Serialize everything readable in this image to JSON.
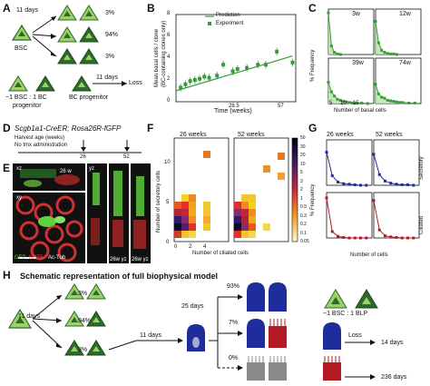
{
  "panel_letters": [
    "A",
    "B",
    "C",
    "D",
    "E",
    "F",
    "G",
    "H"
  ],
  "panelA": {
    "time_label": "11 days",
    "bsc_label": "BSC",
    "pcts": [
      "3%",
      "94%",
      "3%"
    ],
    "ratio_label": "~1 BSC : 1 BC",
    "progenitor_label": "progenitor",
    "bc_progenitor_label": "BC progenitor",
    "time2_label": "11 days",
    "loss_label": "Loss"
  },
  "panelB": {
    "legend_prediction": "Prediction",
    "legend_experiment": "Experiment",
    "ylabel_line1": "Mean basal cells / clone",
    "ylabel_line2": "(BC-containing clones only)",
    "xlabel": "Time (weeks)",
    "yticks": [
      "0",
      "2",
      "4",
      "6",
      "8"
    ],
    "xticks": [
      "28.5",
      "57"
    ]
  },
  "panelC": {
    "ylabel": "% Frequency",
    "xlabel": "Number of basal cells",
    "titles": [
      "3w",
      "12w",
      "39w",
      "74w"
    ],
    "yticks": [
      "0",
      "20",
      "40",
      "60",
      "80"
    ],
    "xticks": [
      "5",
      "10",
      "15"
    ]
  },
  "panelD": {
    "genotype": "Scgb1a1-CreER; Rosa26R-fGFP",
    "harvest_label": "Harvest age (weeks)",
    "tmx_label": "No tmx administration",
    "ages": [
      "26",
      "52"
    ]
  },
  "panelE": {
    "label_26w": "26 w",
    "label_xz": "xz",
    "label_xy": "xy",
    "label_yz": "yz",
    "label_26w_yz_1": "26w yz",
    "label_26w_yz_2": "26w yz",
    "stain_gfp": "GFP",
    "stain_krt5": "KRT5",
    "stain_actub": "Ac-Tub"
  },
  "panelF": {
    "titles": [
      "26 weeks",
      "52 weeks"
    ],
    "ylabel": "Number of secretory cells",
    "xlabel": "Number of ciliated cells",
    "colorbar_ticks": [
      "50",
      "30",
      "20",
      "10",
      "5",
      "3",
      "2",
      "1",
      "0.5",
      "0.3",
      "0.2",
      "0.1",
      "0.05"
    ],
    "yticks": [
      "0",
      "5",
      "10"
    ],
    "xticks": [
      "0",
      "2",
      "4"
    ]
  },
  "panelG": {
    "titles": [
      "26 weeks",
      "52 weeks"
    ],
    "ylabel": "% Frequency",
    "xlabel": "Number of cells",
    "row_labels": [
      "Secretory",
      "Ciliated"
    ],
    "yticks": [
      "0",
      "20",
      "40",
      "60",
      "80"
    ],
    "xticks": [
      "2",
      "4",
      "6",
      "8"
    ]
  },
  "panelH": {
    "title": "Schematic representation of full biophysical model",
    "time1": "11 days",
    "pcts_left": [
      "3%",
      "94%",
      "3%"
    ],
    "time2": "11 days",
    "time3": "25 days",
    "pcts_right": [
      "93%",
      "7%",
      "0%"
    ],
    "ratio_label": "~1 BSC : 1 BLP",
    "loss_label": "Loss",
    "days_14": "14 days",
    "days_236": "236 days"
  },
  "colors": {
    "green_dark": "#2d6b2a",
    "green_light": "#9bd06a",
    "series": "#3a9a3a",
    "blue": "#1f2c9c",
    "red": "#b41a24",
    "grey": "#8a8a8a"
  },
  "chart_data": [
    {
      "type": "scatter",
      "ylabel": "Mean basal cells / clone (BC-containing clones only)",
      "xlabel": "Time (weeks)",
      "ylim": [
        0,
        8
      ],
      "series": [
        {
          "name": "Experiment",
          "x": [
            3,
            6,
            9,
            12,
            15,
            18,
            21,
            26,
            30,
            36,
            39,
            45,
            52,
            57,
            64,
            74
          ],
          "y": [
            1.3,
            1.6,
            1.9,
            2.0,
            2.1,
            2.3,
            2.2,
            2.4,
            3.4,
            2.8,
            3.0,
            3.1,
            3.4,
            3.4,
            4.6,
            3.6
          ]
        },
        {
          "name": "Prediction",
          "x": [
            0,
            74
          ],
          "y": [
            1.0,
            4.2
          ]
        }
      ]
    },
    {
      "type": "line",
      "xlabel": "Number of basal cells",
      "ylabel": "% Frequency",
      "panels": [
        {
          "title": "3w",
          "x": [
            1,
            2,
            3,
            4,
            5
          ],
          "y": [
            78,
            16,
            4,
            1,
            0
          ]
        },
        {
          "title": "12w",
          "x": [
            1,
            2,
            3,
            4,
            5,
            6,
            7,
            8
          ],
          "y": [
            62,
            22,
            8,
            4,
            2,
            1,
            1,
            0
          ]
        },
        {
          "title": "39w",
          "x": [
            1,
            2,
            3,
            4,
            5,
            6,
            7,
            8,
            9,
            10,
            12,
            14
          ],
          "y": [
            40,
            22,
            14,
            8,
            6,
            4,
            3,
            2,
            1,
            1,
            1,
            0
          ]
        },
        {
          "title": "74w",
          "x": [
            1,
            2,
            3,
            4,
            5,
            6,
            7,
            8,
            9,
            10,
            12,
            14
          ],
          "y": [
            36,
            18,
            12,
            10,
            6,
            5,
            4,
            3,
            2,
            2,
            1,
            1
          ]
        }
      ]
    },
    {
      "type": "line",
      "xlabel": "Number of cells",
      "ylabel": "% Frequency",
      "panels": [
        {
          "title": "26 weeks",
          "row": "Secretory",
          "x": [
            1,
            2,
            3,
            4,
            5,
            6,
            7,
            8
          ],
          "y": [
            62,
            18,
            6,
            3,
            2,
            1,
            0,
            0
          ]
        },
        {
          "title": "52 weeks",
          "row": "Secretory",
          "x": [
            1,
            2,
            3,
            4,
            5,
            6,
            7,
            8
          ],
          "y": [
            58,
            20,
            8,
            4,
            2,
            1,
            1,
            0
          ]
        },
        {
          "title": "26 weeks",
          "row": "Ciliated",
          "x": [
            1,
            2,
            3,
            4,
            5,
            6,
            7,
            8
          ],
          "y": [
            75,
            12,
            3,
            1,
            0,
            0,
            0,
            0
          ]
        },
        {
          "title": "52 weeks",
          "row": "Ciliated",
          "x": [
            1,
            2,
            3,
            4,
            5,
            6,
            7,
            8
          ],
          "y": [
            70,
            15,
            4,
            2,
            1,
            0,
            0,
            0
          ]
        }
      ]
    }
  ]
}
